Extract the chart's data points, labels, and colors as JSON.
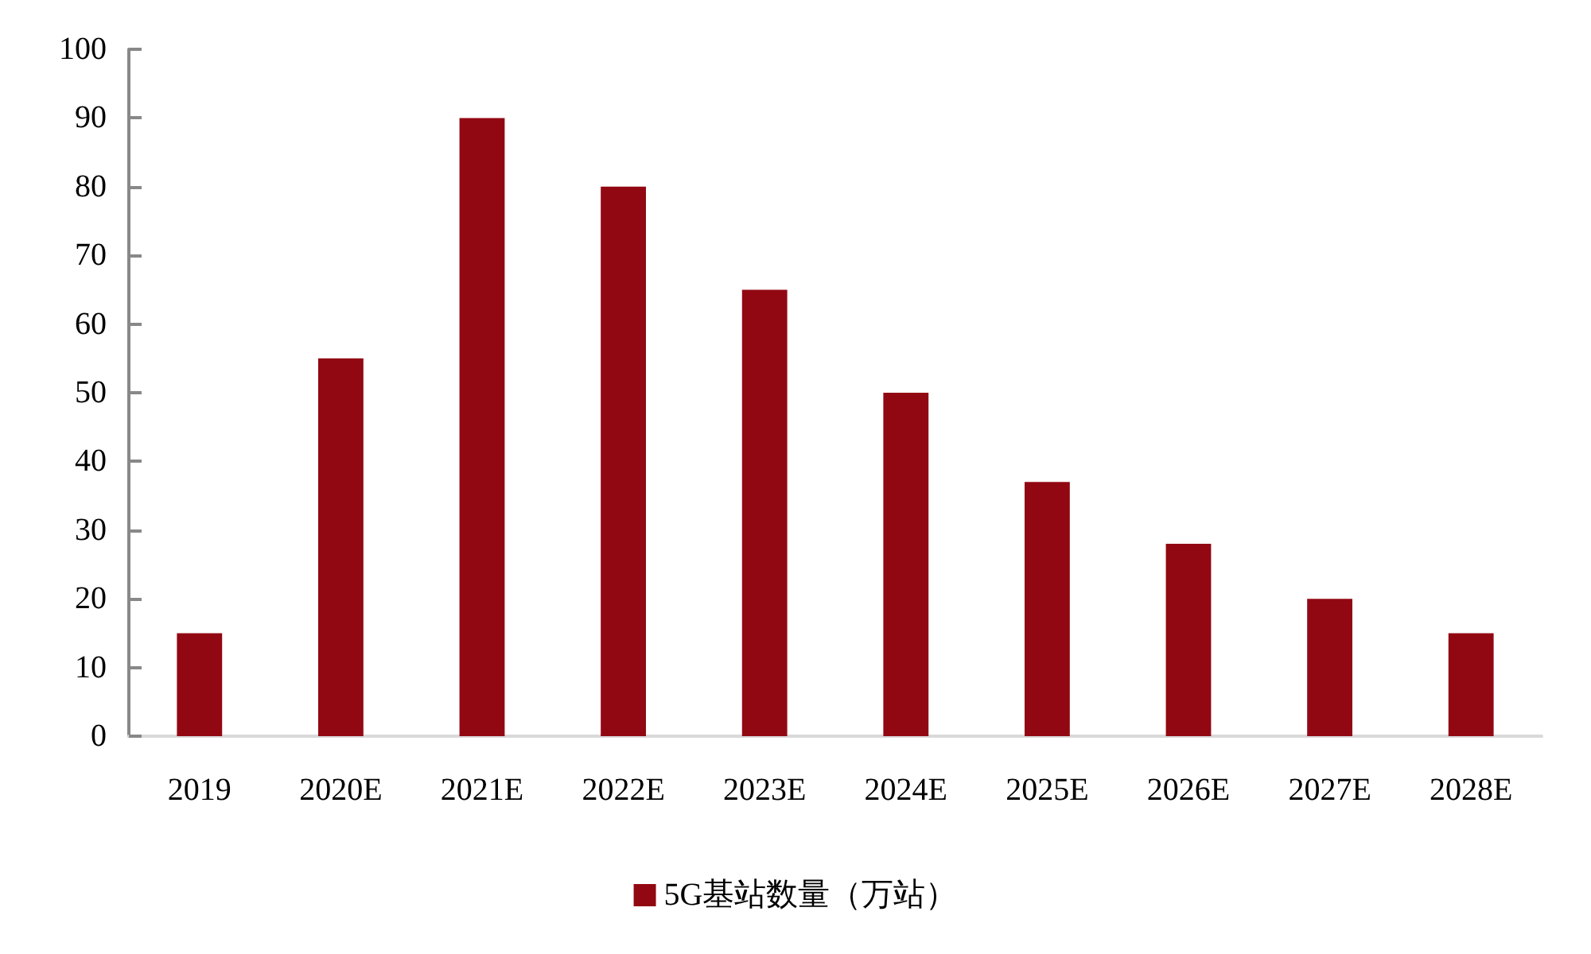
{
  "chart_data": {
    "type": "bar",
    "categories": [
      "2019",
      "2020E",
      "2021E",
      "2022E",
      "2023E",
      "2024E",
      "2025E",
      "2026E",
      "2027E",
      "2028E"
    ],
    "series": [
      {
        "name": "5G基站数量（万站）",
        "color": "#920812",
        "values": [
          15,
          55,
          90,
          80,
          65,
          50,
          37,
          28,
          20,
          15
        ]
      }
    ],
    "ylim": [
      0,
      100
    ],
    "yticks": [
      0,
      10,
      20,
      30,
      40,
      50,
      60,
      70,
      80,
      90,
      100
    ],
    "grid": false,
    "legend": "bottom"
  }
}
